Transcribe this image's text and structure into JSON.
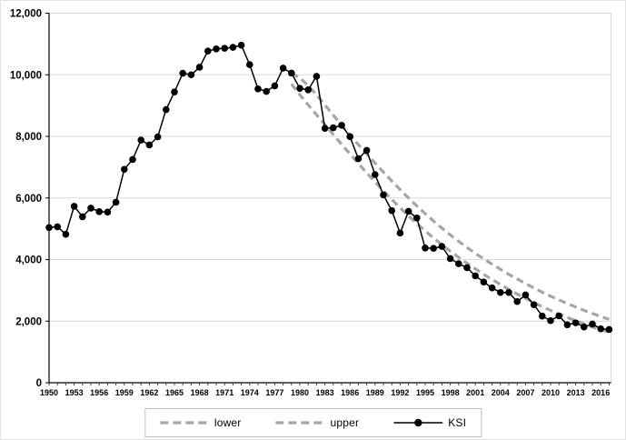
{
  "chart_data": {
    "type": "line",
    "title": "",
    "xlabel": "",
    "ylabel": "",
    "x_tick_labels": [
      "1950",
      "1953",
      "1956",
      "1959",
      "1962",
      "1965",
      "1968",
      "1971",
      "1974",
      "1977",
      "1980",
      "1983",
      "1986",
      "1989",
      "1992",
      "1995",
      "1998",
      "2001",
      "2004",
      "2007",
      "2010",
      "2013",
      "2016"
    ],
    "y_tick_labels": [
      "0",
      "2,000",
      "4,000",
      "6,000",
      "8,000",
      "10,000",
      "12,000"
    ],
    "ylim": [
      0,
      12000
    ],
    "x_range": [
      1950,
      2017
    ],
    "grid": "horizontal",
    "legend_position": "bottom-center-boxed",
    "legend": {
      "lower": "lower",
      "upper": "upper",
      "ksi": "KSI"
    },
    "colors": {
      "ksi": "#000000",
      "band": "#a6a6a6",
      "grid": "#d9d9d9",
      "axis": "#000000",
      "legend_border": "#bfbfbf"
    },
    "series": [
      {
        "name": "KSI",
        "style": "solid-markers",
        "start_year": 1950,
        "values": [
          5040,
          5065,
          4820,
          5730,
          5390,
          5670,
          5555,
          5540,
          5860,
          6930,
          7250,
          7880,
          7720,
          7985,
          8870,
          9440,
          10050,
          10000,
          10245,
          10770,
          10840,
          10860,
          10890,
          10960,
          10330,
          9540,
          9460,
          9640,
          10215,
          10055,
          9560,
          9510,
          9950,
          8260,
          8280,
          8360,
          7990,
          7275,
          7545,
          6760,
          6100,
          5590,
          4860,
          5565,
          5350,
          4375,
          4365,
          4425,
          4030,
          3865,
          3735,
          3470,
          3270,
          3080,
          2930,
          2930,
          2635,
          2850,
          2535,
          2165,
          2015,
          2170,
          1880,
          1945,
          1810,
          1905,
          1750,
          1730
        ]
      },
      {
        "name": "lower",
        "style": "dashed",
        "start_year": 1979,
        "values": [
          9700,
          9350,
          9020,
          8700,
          8380,
          8060,
          7740,
          7430,
          7120,
          6820,
          6520,
          6230,
          5950,
          5680,
          5420,
          5170,
          4930,
          4700,
          4480,
          4270,
          4070,
          3880,
          3700,
          3520,
          3350,
          3190,
          3030,
          2880,
          2740,
          2600,
          2470,
          2350,
          2230,
          2120,
          2010,
          1910,
          1810,
          1720,
          1640
        ]
      },
      {
        "name": "upper",
        "style": "dashed",
        "start_year": 1979,
        "values": [
          10050,
          9900,
          9650,
          9350,
          9020,
          8690,
          8360,
          8040,
          7730,
          7430,
          7130,
          6840,
          6550,
          6270,
          6000,
          5740,
          5490,
          5250,
          5020,
          4800,
          4590,
          4390,
          4200,
          4020,
          3850,
          3680,
          3520,
          3370,
          3220,
          3080,
          2940,
          2810,
          2690,
          2570,
          2460,
          2350,
          2250,
          2150,
          2060
        ]
      }
    ]
  }
}
